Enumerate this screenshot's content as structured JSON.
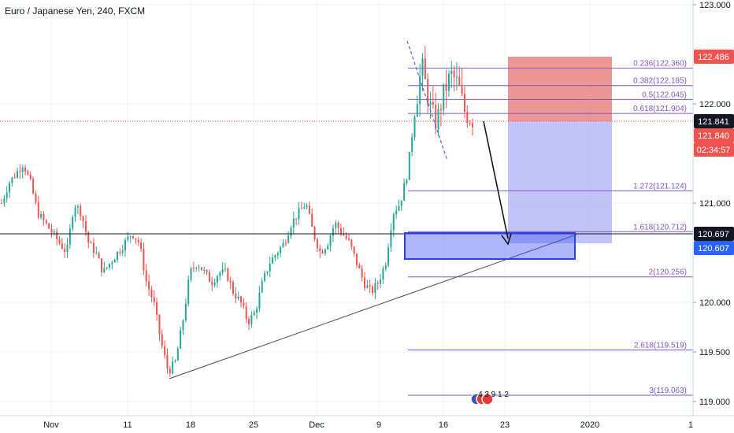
{
  "header": {
    "title": "Euro / Japanese Yen, 240, FXCM"
  },
  "price_axis": {
    "ticks": [
      "123.000",
      "122.000",
      "121.000",
      "120.000",
      "119.500",
      "119.000"
    ]
  },
  "time_axis": {
    "labels": [
      "Nov",
      "11",
      "18",
      "25",
      "Dec",
      "9",
      "16",
      "23",
      "2020",
      "1"
    ]
  },
  "price_tags": [
    {
      "text": "122.486",
      "color": "#ef5350"
    },
    {
      "text": "121.841",
      "color": "#131722"
    },
    {
      "text": "121.840",
      "color": "#ef5350"
    },
    {
      "text": "02:34:57",
      "color": "#ef5350"
    },
    {
      "text": "120.697",
      "color": "#131722"
    },
    {
      "text": "120.607",
      "color": "#2962ff"
    }
  ],
  "fib_levels": [
    {
      "label": "0.236(122.360)",
      "price": 122.36
    },
    {
      "label": "0.382(122.185)",
      "price": 122.185
    },
    {
      "label": "0.5(122.045)",
      "price": 122.045
    },
    {
      "label": "0.618(121.904)",
      "price": 121.904
    },
    {
      "label": "1.272(121.124)",
      "price": 121.124
    },
    {
      "label": "1.618(120.712)",
      "price": 120.712
    },
    {
      "label": "2(120.256)",
      "price": 120.256
    },
    {
      "label": "2.618(119.519)",
      "price": 119.519
    },
    {
      "label": "3(119.063)",
      "price": 119.063
    }
  ],
  "events_badge": {
    "text": "4 3 9 1 2"
  },
  "colors": {
    "bull": "#26a69a",
    "bear": "#ef5350",
    "fib": "#7e57c2",
    "stop_zone": "#e57373",
    "target_zone": "#b3b5f5",
    "support_box": "#4d5ff5",
    "current_price_line": "#ef5350"
  },
  "chart_data": {
    "type": "candlestick",
    "symbol": "EUR/JPY",
    "timeframe": "240",
    "source": "FXCM",
    "ylim": [
      118.95,
      123.05
    ],
    "x_labels": [
      "Nov",
      "11",
      "18",
      "25",
      "Dec",
      "9",
      "16",
      "23",
      "2020",
      "1"
    ],
    "last_price": 121.84,
    "horizontal_level": 120.697,
    "short_position": {
      "entry": 121.841,
      "stop": 122.486,
      "target": 120.607
    },
    "support_zone": {
      "top": 120.712,
      "bottom": 120.45
    },
    "trendline": {
      "from": 119.24,
      "to": 120.71
    },
    "fib_extension": [
      {
        "ratio": 0.236,
        "price": 122.36
      },
      {
        "ratio": 0.382,
        "price": 122.185
      },
      {
        "ratio": 0.5,
        "price": 122.045
      },
      {
        "ratio": 0.618,
        "price": 121.904
      },
      {
        "ratio": 1.272,
        "price": 121.124
      },
      {
        "ratio": 1.618,
        "price": 120.712
      },
      {
        "ratio": 2,
        "price": 120.256
      },
      {
        "ratio": 2.618,
        "price": 119.519
      },
      {
        "ratio": 3,
        "price": 119.063
      }
    ],
    "path_points": [
      121.0,
      121.2,
      121.3,
      121.4,
      121.2,
      120.9,
      120.8,
      120.7,
      120.6,
      120.5,
      121.0,
      120.9,
      120.6,
      120.5,
      120.3,
      120.4,
      120.5,
      120.6,
      120.7,
      120.6,
      120.2,
      120.0,
      119.6,
      119.3,
      119.4,
      119.8,
      120.3,
      120.4,
      120.3,
      120.2,
      120.3,
      120.3,
      120.1,
      120.0,
      119.8,
      119.9,
      120.2,
      120.4,
      120.5,
      120.6,
      120.8,
      120.9,
      121.0,
      120.7,
      120.5,
      120.6,
      120.8,
      120.7,
      120.6,
      120.4,
      120.2,
      120.1,
      120.2,
      120.4,
      120.9,
      121.0,
      121.3,
      121.9,
      122.4,
      122.0,
      121.8,
      122.1,
      122.3,
      122.2,
      121.9,
      121.84
    ]
  }
}
